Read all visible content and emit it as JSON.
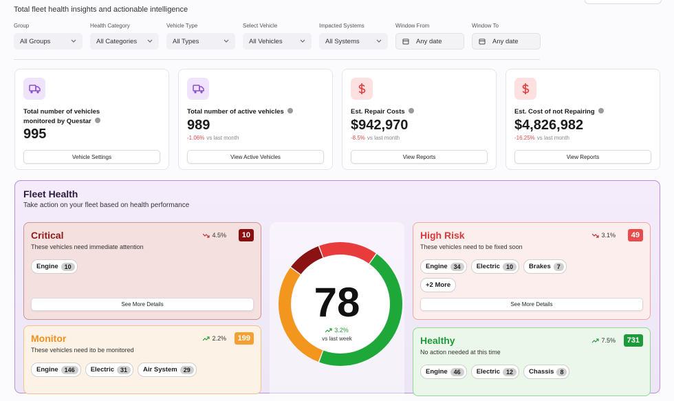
{
  "header": {
    "subtitle": "Total fleet health insights and actionable intelligence"
  },
  "filters": [
    {
      "label": "Group",
      "value": "All Groups"
    },
    {
      "label": "Health Category",
      "value": "All Categories"
    },
    {
      "label": "Vehicle Type",
      "value": "All Types"
    },
    {
      "label": "Select Vehicle",
      "value": "All Vehicles"
    },
    {
      "label": "Impacted Systems",
      "value": "All Systems"
    },
    {
      "label": "Window From",
      "value": "Any date"
    },
    {
      "label": "Window To",
      "value": "Any date"
    }
  ],
  "stats": [
    {
      "label": "Total number of vehicles monitored by Questar",
      "value": "995",
      "button": "Vehicle Settings"
    },
    {
      "label": "Total number of active vehicles",
      "value": "989",
      "change": "-1.06%",
      "compare": "vs last month",
      "button": "View Active Vehicles"
    },
    {
      "label": "Est. Repair Costs",
      "value": "$942,970",
      "change": "-8.5%",
      "compare": "vs last month",
      "button": "View Reports"
    },
    {
      "label": "Est. Cost of not Repairing",
      "value": "$4,826,982",
      "change": "-16.25%",
      "compare": "vs last month",
      "button": "View Reports"
    }
  ],
  "fleet_health": {
    "title": "Fleet Health",
    "subtitle": "Take action on your fleet based on health performance",
    "score": "78",
    "score_change": "3.2%",
    "score_compare": "vs last week",
    "groups": [
      {
        "title": "Critical",
        "description": "These vehicles need immediate attention",
        "trend": "4.5%",
        "count": "10",
        "tags": [
          {
            "name": "Engine",
            "count": "10"
          }
        ],
        "button": "See More Details"
      },
      {
        "title": "High Risk",
        "description": "These vehicles need to be fixed soon",
        "trend": "3.1%",
        "count": "49",
        "tags": [
          {
            "name": "Engine",
            "count": "34"
          },
          {
            "name": "Electric",
            "count": "10"
          },
          {
            "name": "Brakes",
            "count": "7"
          }
        ],
        "more": "+2 More",
        "button": "See More Details"
      },
      {
        "title": "Monitor",
        "description": "These vehicles need ito be monitored",
        "trend": "2.2%",
        "count": "199",
        "tags": [
          {
            "name": "Engine",
            "count": "146"
          },
          {
            "name": "Electric",
            "count": "31"
          },
          {
            "name": "Air System",
            "count": "29"
          }
        ]
      },
      {
        "title": "Healthy",
        "description": "No action needed at this time",
        "trend": "7.5%",
        "count": "731",
        "tags": [
          {
            "name": "Engine",
            "count": "46"
          },
          {
            "name": "Electric",
            "count": "12"
          },
          {
            "name": "Chassis",
            "count": "8"
          }
        ]
      }
    ]
  }
}
